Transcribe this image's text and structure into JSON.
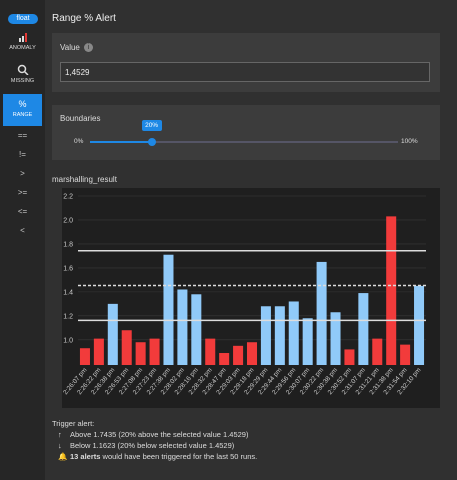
{
  "sidebar": {
    "badge": "float",
    "items": [
      {
        "label": "ANOMALY"
      },
      {
        "label": "MISSING"
      },
      {
        "label": "RANGE"
      }
    ],
    "operators": [
      "==",
      "!=",
      ">",
      ">=",
      "<=",
      "<"
    ]
  },
  "title": "Range % Alert",
  "value_panel": {
    "label": "Value",
    "input": "1,4529"
  },
  "boundaries": {
    "label": "Boundaries",
    "value": 20,
    "value_label": "20%",
    "min_label": "0%",
    "max_label": "100%"
  },
  "chart_data": {
    "type": "bar",
    "title": "marshalling_result",
    "categories": [
      "2:26:07 pm",
      "2:26:22 pm",
      "2:26:38 pm",
      "2:26:53 pm",
      "2:27:08 pm",
      "2:27:23 pm",
      "2:27:38 pm",
      "2:28:02 pm",
      "2:28:16 pm",
      "2:28:32 pm",
      "2:28:47 pm",
      "2:29:03 pm",
      "2:29:18 pm",
      "2:29:29 pm",
      "2:29:44 pm",
      "2:29:56 pm",
      "2:30:07 pm",
      "2:30:22 pm",
      "2:30:38 pm",
      "2:30:52 pm",
      "2:31:07 pm",
      "2:31:21 pm",
      "2:31:38 pm",
      "2:31:54 pm",
      "2:32:10 pm"
    ],
    "values": [
      0.93,
      1.01,
      1.3,
      1.08,
      0.98,
      1.01,
      1.71,
      1.42,
      1.38,
      1.01,
      0.89,
      0.95,
      0.98,
      1.28,
      1.28,
      1.32,
      1.18,
      1.65,
      1.23,
      0.92,
      1.39,
      1.01,
      2.03,
      0.96,
      1.45
    ],
    "colors": [
      "#f23b3b",
      "#f23b3b",
      "#90caf9",
      "#f23b3b",
      "#f23b3b",
      "#f23b3b",
      "#90caf9",
      "#90caf9",
      "#90caf9",
      "#f23b3b",
      "#f23b3b",
      "#f23b3b",
      "#f23b3b",
      "#90caf9",
      "#90caf9",
      "#90caf9",
      "#90caf9",
      "#90caf9",
      "#90caf9",
      "#f23b3b",
      "#90caf9",
      "#f23b3b",
      "#f23b3b",
      "#f23b3b",
      "#90caf9"
    ],
    "lines": [
      {
        "value": 1.7435,
        "style": "solid"
      },
      {
        "value": 1.4529,
        "style": "dashed"
      },
      {
        "value": 1.1623,
        "style": "solid"
      }
    ],
    "ylim": [
      0.79,
      2.25
    ],
    "yticks": [
      2.2,
      {
        "value": 2,
        "label": "2.0"
      },
      1.8,
      1.6,
      1.4,
      1.2,
      {
        "value": 1,
        "label": "1.0"
      }
    ],
    "grid": true
  },
  "trigger": {
    "title": "Trigger alert:",
    "above": "Above 1.7435 (20% above the selected value 1.4529)",
    "below": "Below 1.1623 (20% below selected value 1.4529)",
    "count": "13 alerts",
    "rest": " would have been triggered for the last 50 runs."
  }
}
